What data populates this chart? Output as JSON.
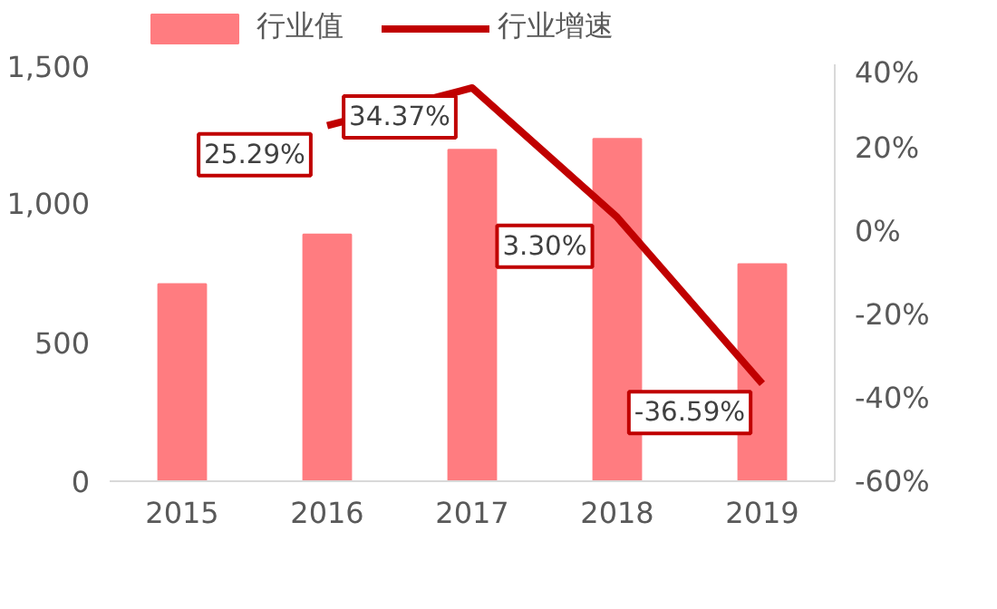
{
  "chart_data": {
    "type": "bar",
    "categories": [
      "2015",
      "2016",
      "2017",
      "2018",
      "2019"
    ],
    "series": [
      {
        "name": "行业值",
        "color": "#ff7c80",
        "values": [
          709,
          888,
          1193,
          1232,
          781
        ]
      },
      {
        "name": "行业增速",
        "type": "line",
        "axis": "y2",
        "color": "#c00000",
        "values": [
          null,
          25.29,
          34.37,
          3.3,
          -36.59
        ],
        "value_labels": [
          null,
          "25.29%",
          "34.37%",
          "3.30%",
          "-36.59%"
        ]
      }
    ],
    "ylim": [
      0,
      1500
    ],
    "yticks": [
      0,
      500,
      {
        "value": 1000,
        "label": "1,000"
      },
      {
        "value": 1500,
        "label": "1,500"
      }
    ],
    "y2lim": [
      -60,
      40
    ],
    "y2ticks": [
      {
        "value": -60,
        "label": "-60%"
      },
      {
        "value": -40,
        "label": "-40%"
      },
      {
        "value": -20,
        "label": "-20%"
      },
      {
        "value": 0,
        "label": "0%"
      },
      {
        "value": 20,
        "label": "20%"
      },
      {
        "value": 40,
        "label": "40%"
      }
    ],
    "grid": false,
    "legend": "top",
    "line_style": "solid"
  }
}
